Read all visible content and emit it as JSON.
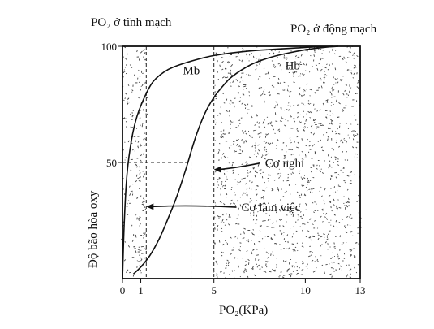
{
  "chart_data": {
    "type": "line",
    "title_left": "PO₂ ở tĩnh mạch",
    "title_right": "PO₂ ở động mạch",
    "xlabel": "PO₂(KPa)",
    "ylabel": "Độ bão hòa oxy",
    "xlim": [
      0,
      13
    ],
    "ylim": [
      0,
      100
    ],
    "x_ticks": [
      "0",
      "1",
      "5",
      "10",
      "13"
    ],
    "x_tick_values": [
      0,
      1,
      5,
      10,
      13
    ],
    "y_ticks": [
      "50",
      "100"
    ],
    "y_tick_values": [
      50,
      100
    ],
    "series": [
      {
        "name": "Mb",
        "x": [
          0,
          0.1,
          0.25,
          0.5,
          0.8,
          1.2,
          1.7,
          2.5,
          3.5,
          5,
          7,
          10,
          11.5
        ],
        "y": [
          0,
          25,
          45,
          60,
          70,
          78,
          85,
          90,
          93,
          96,
          98,
          99.5,
          100
        ]
      },
      {
        "name": "Hb",
        "x": [
          0.6,
          1,
          1.5,
          2,
          2.5,
          3,
          3.5,
          4,
          4.5,
          5,
          5.5,
          6,
          7,
          8,
          9,
          10,
          11,
          11.8
        ],
        "y": [
          2,
          5,
          10,
          17,
          26,
          36,
          48,
          61,
          71,
          78,
          83,
          87,
          92,
          95,
          97,
          98.5,
          99.5,
          100
        ]
      }
    ],
    "shaded_regions": [
      {
        "x_start": 0,
        "x_end": 1.3
      },
      {
        "x_start": 5,
        "x_end": 13
      }
    ],
    "vertical_lines": [
      1.3,
      3.75,
      5
    ],
    "guide_y": 50,
    "guide_x_end": 3.75,
    "annotations": [
      {
        "text": "Mb",
        "x": 3.3,
        "y": 88
      },
      {
        "text": "Hb",
        "x": 8.9,
        "y": 90
      },
      {
        "text": "Cơ nghỉ",
        "x": 7.8,
        "y": 48,
        "arrow_to_x": 5,
        "arrow_to_y": 47
      },
      {
        "text": "Cơ làm việc",
        "x": 6.5,
        "y": 29,
        "arrow_to_x": 1.3,
        "arrow_to_y": 31
      }
    ]
  }
}
